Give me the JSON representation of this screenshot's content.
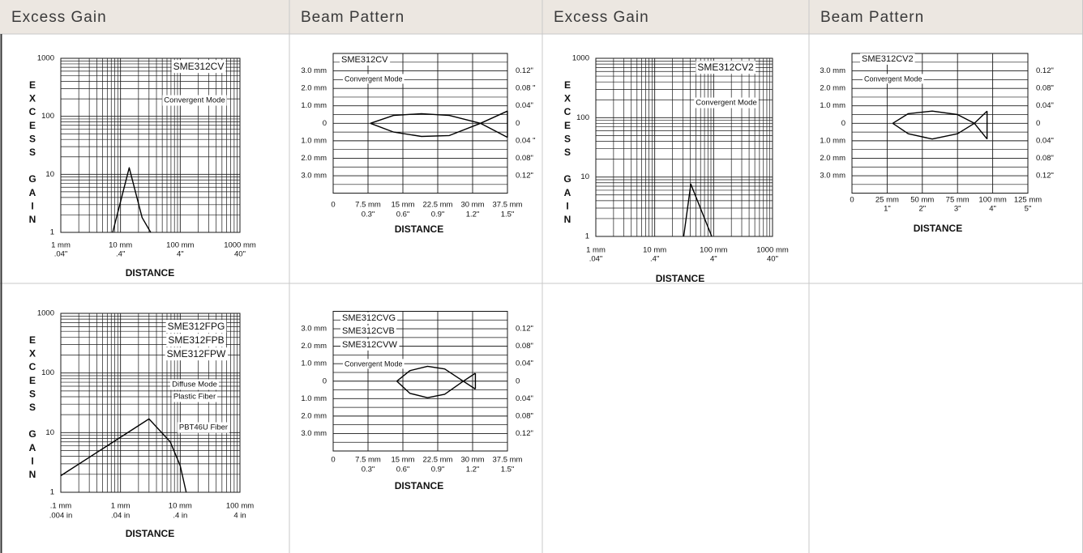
{
  "table": {
    "headers": [
      "Excess Gain",
      "Beam Pattern",
      "Excess Gain",
      "Beam Pattern"
    ]
  },
  "chart_data": [
    {
      "type": "line",
      "log_x": true,
      "log_y": true,
      "grid": true,
      "annotations": [
        "SME312CV",
        "Convergent Mode"
      ],
      "xlabel": "DISTANCE",
      "ylabel": "EXCESS GAIN",
      "xlim": [
        1,
        1000
      ],
      "ylim": [
        1,
        1000
      ],
      "xticks": [
        {
          "value": 1,
          "label": "1 mm"
        },
        {
          "value": 10,
          "label": "10 mm"
        },
        {
          "value": 100,
          "label": "100 mm"
        },
        {
          "value": 1000,
          "label": "1000 mm"
        }
      ],
      "x2ticks": [
        {
          "value": 1,
          "label": ".04\""
        },
        {
          "value": 10,
          "label": ".4\""
        },
        {
          "value": 100,
          "label": "4\""
        },
        {
          "value": 1000,
          "label": "40\""
        }
      ],
      "yticks": [
        1,
        10,
        100,
        1000
      ],
      "x": [
        7.4,
        14,
        23,
        32
      ],
      "series": [
        {
          "color": "#000000",
          "values": [
            1,
            13,
            1.8,
            1
          ]
        }
      ]
    },
    {
      "type": "line",
      "grid": true,
      "annotations": [
        "SME312CV",
        "Convergent Mode"
      ],
      "xlabel": "DISTANCE",
      "xlim": [
        0,
        37.5
      ],
      "ylim": [
        -4,
        4
      ],
      "xticks": [
        0,
        {
          "value": 7.5,
          "label": "7.5 mm"
        },
        {
          "value": 15,
          "label": "15 mm"
        },
        {
          "value": 22.5,
          "label": "22.5 mm"
        },
        {
          "value": 30,
          "label": "30 mm"
        },
        {
          "value": 37.5,
          "label": "37.5 mm"
        }
      ],
      "x2ticks": [
        {
          "value": 7.5,
          "label": "0.3\""
        },
        {
          "value": 15,
          "label": "0.6\""
        },
        {
          "value": 22.5,
          "label": "0.9\""
        },
        {
          "value": 30,
          "label": "1.2\""
        },
        {
          "value": 37.5,
          "label": "1.5\""
        }
      ],
      "yticks": [
        {
          "value": 3,
          "label": "3.0 mm"
        },
        {
          "value": 2,
          "label": "2.0 mm"
        },
        {
          "value": 1,
          "label": "1.0 mm"
        },
        0,
        {
          "value": -1,
          "label": "1.0 mm"
        },
        {
          "value": -2,
          "label": "2.0 mm"
        },
        {
          "value": -3,
          "label": "3.0 mm"
        }
      ],
      "y2ticks": [
        {
          "value": 3,
          "label": "0.12\""
        },
        {
          "value": 2,
          "label": "0.08 \""
        },
        {
          "value": 1,
          "label": "0.04\""
        },
        0,
        {
          "value": -1,
          "label": "0.04 \""
        },
        {
          "value": -2,
          "label": "0.08\""
        },
        {
          "value": -3,
          "label": "0.12\""
        }
      ],
      "yminorticks": [
        3.5,
        2.5,
        1.5,
        0.5,
        -0.5,
        -1.5,
        -2.5,
        -3.5
      ],
      "x": [
        8,
        13,
        19,
        25,
        31.7,
        37.5
      ],
      "series": [
        {
          "color": "#000000",
          "values": [
            0,
            0.45,
            0.55,
            0.45,
            0,
            -0.8
          ]
        },
        {
          "color": "#000000",
          "values": [
            0,
            -0.5,
            -0.75,
            -0.7,
            0,
            0.7
          ]
        }
      ]
    },
    {
      "type": "line",
      "log_x": true,
      "log_y": true,
      "grid": true,
      "annotations": [
        "SME312CV2",
        "Convergent Mode"
      ],
      "xlabel": "DISTANCE",
      "ylabel": "EXCESS GAIN",
      "xlim": [
        1,
        1000
      ],
      "ylim": [
        1,
        1000
      ],
      "xticks": [
        {
          "value": 1,
          "label": "1 mm"
        },
        {
          "value": 10,
          "label": "10 mm"
        },
        {
          "value": 100,
          "label": "100 mm"
        },
        {
          "value": 1000,
          "label": "1000 mm"
        }
      ],
      "x2ticks": [
        {
          "value": 1,
          "label": ".04\""
        },
        {
          "value": 10,
          "label": ".4\""
        },
        {
          "value": 100,
          "label": "4\""
        },
        {
          "value": 1000,
          "label": "40\""
        }
      ],
      "yticks": [
        1,
        10,
        100,
        1000
      ],
      "x": [
        31,
        41,
        93
      ],
      "series": [
        {
          "color": "#000000",
          "values": [
            1,
            7.6,
            1
          ]
        }
      ]
    },
    {
      "type": "line",
      "grid": true,
      "annotations": [
        "SME312CV2",
        "Convergent Mode"
      ],
      "xlabel": "DISTANCE",
      "xlim": [
        0,
        125
      ],
      "ylim": [
        -4,
        4
      ],
      "xticks": [
        0,
        {
          "value": 25,
          "label": "25 mm"
        },
        {
          "value": 50,
          "label": "50 mm"
        },
        {
          "value": 75,
          "label": "75 mm"
        },
        {
          "value": 100,
          "label": "100 mm"
        },
        {
          "value": 125,
          "label": "125 mm"
        }
      ],
      "x2ticks": [
        {
          "value": 25,
          "label": "1\""
        },
        {
          "value": 50,
          "label": "2\""
        },
        {
          "value": 75,
          "label": "3\""
        },
        {
          "value": 100,
          "label": "4\""
        },
        {
          "value": 125,
          "label": "5\""
        }
      ],
      "yticks": [
        {
          "value": 3,
          "label": "3.0 mm"
        },
        {
          "value": 2,
          "label": "2.0 mm"
        },
        {
          "value": 1,
          "label": "1.0 mm"
        },
        0,
        {
          "value": -1,
          "label": "1.0 mm"
        },
        {
          "value": -2,
          "label": "2.0 mm"
        },
        {
          "value": -3,
          "label": "3.0 mm"
        }
      ],
      "y2ticks": [
        {
          "value": 3,
          "label": "0.12\""
        },
        {
          "value": 2,
          "label": "0.08\""
        },
        {
          "value": 1,
          "label": "0.04\""
        },
        0,
        {
          "value": -1,
          "label": "0.04\""
        },
        {
          "value": -2,
          "label": "0.08\""
        },
        {
          "value": -3,
          "label": "0.12\""
        }
      ],
      "yminorticks": [
        3.5,
        2.5,
        1.5,
        0.5,
        -0.5,
        -1.5,
        -2.5,
        -3.5
      ],
      "x": [
        29,
        40,
        57,
        75,
        87,
        96
      ],
      "series": [
        {
          "color": "#000000",
          "values": [
            0,
            0.55,
            0.7,
            0.5,
            0,
            -0.9
          ]
        },
        {
          "color": "#000000",
          "values": [
            0,
            -0.6,
            -0.9,
            -0.6,
            0,
            0.7
          ]
        }
      ]
    },
    {
      "type": "line",
      "log_x": true,
      "log_y": true,
      "grid": true,
      "annotations": [
        "SME312FPG",
        "SME312FPB",
        "SME312FPW",
        "Diffuse Mode",
        "Plastic Fiber",
        "PBT46U Fiber"
      ],
      "xlabel": "DISTANCE",
      "ylabel": "EXCESS GAIN",
      "xlim": [
        0.1,
        100
      ],
      "ylim": [
        1,
        1000
      ],
      "xticks": [
        {
          "value": 0.1,
          "label": ".1 mm"
        },
        {
          "value": 1,
          "label": "1 mm"
        },
        {
          "value": 10,
          "label": "10 mm"
        },
        {
          "value": 100,
          "label": "100 mm"
        }
      ],
      "x2ticks": [
        {
          "value": 0.1,
          "label": ".004 in"
        },
        {
          "value": 1,
          "label": ".04 in"
        },
        {
          "value": 10,
          "label": ".4 in"
        },
        {
          "value": 100,
          "label": "4 in"
        }
      ],
      "yticks": [
        1,
        10,
        100,
        1000
      ],
      "x": [
        0.1,
        3,
        6.8,
        10,
        12.6
      ],
      "series": [
        {
          "color": "#000000",
          "values": [
            1.9,
            17,
            7,
            2.8,
            1
          ]
        }
      ]
    },
    {
      "type": "line",
      "grid": true,
      "annotations": [
        "SME312CVG",
        "SME312CVB",
        "SME312CVW",
        "Convergent Mode"
      ],
      "xlabel": "DISTANCE",
      "xlim": [
        0,
        37.5
      ],
      "ylim": [
        -4,
        4
      ],
      "xticks": [
        0,
        {
          "value": 7.5,
          "label": "7.5 mm"
        },
        {
          "value": 15,
          "label": "15 mm"
        },
        {
          "value": 22.5,
          "label": "22.5 mm"
        },
        {
          "value": 30,
          "label": "30 mm"
        },
        {
          "value": 37.5,
          "label": "37.5 mm"
        }
      ],
      "x2ticks": [
        {
          "value": 7.5,
          "label": "0.3\""
        },
        {
          "value": 15,
          "label": "0.6\""
        },
        {
          "value": 22.5,
          "label": "0.9\""
        },
        {
          "value": 30,
          "label": "1.2\""
        },
        {
          "value": 37.5,
          "label": "1.5\""
        }
      ],
      "yticks": [
        {
          "value": 3,
          "label": "3.0 mm"
        },
        {
          "value": 2,
          "label": "2.0 mm"
        },
        {
          "value": 1,
          "label": "1.0 mm"
        },
        0,
        {
          "value": -1,
          "label": "1.0 mm"
        },
        {
          "value": -2,
          "label": "2.0 mm"
        },
        {
          "value": -3,
          "label": "3.0 mm"
        }
      ],
      "y2ticks": [
        {
          "value": 3,
          "label": "0.12\""
        },
        {
          "value": 2,
          "label": "0.08\""
        },
        {
          "value": 1,
          "label": "0.04\""
        },
        0,
        {
          "value": -1,
          "label": "0.04\""
        },
        {
          "value": -2,
          "label": "0.08\""
        },
        {
          "value": -3,
          "label": "0.12\""
        }
      ],
      "yminorticks": [
        3.5,
        2.5,
        1.5,
        0.5,
        -0.5,
        -1.5,
        -2.5,
        -3.5
      ],
      "x": [
        13.7,
        16.5,
        20.3,
        24,
        28,
        30.6
      ],
      "series": [
        {
          "color": "#000000",
          "values": [
            0,
            0.6,
            0.85,
            0.7,
            0,
            -0.45
          ]
        },
        {
          "color": "#000000",
          "values": [
            0,
            -0.7,
            -0.95,
            -0.75,
            0,
            0.45
          ]
        }
      ]
    }
  ]
}
